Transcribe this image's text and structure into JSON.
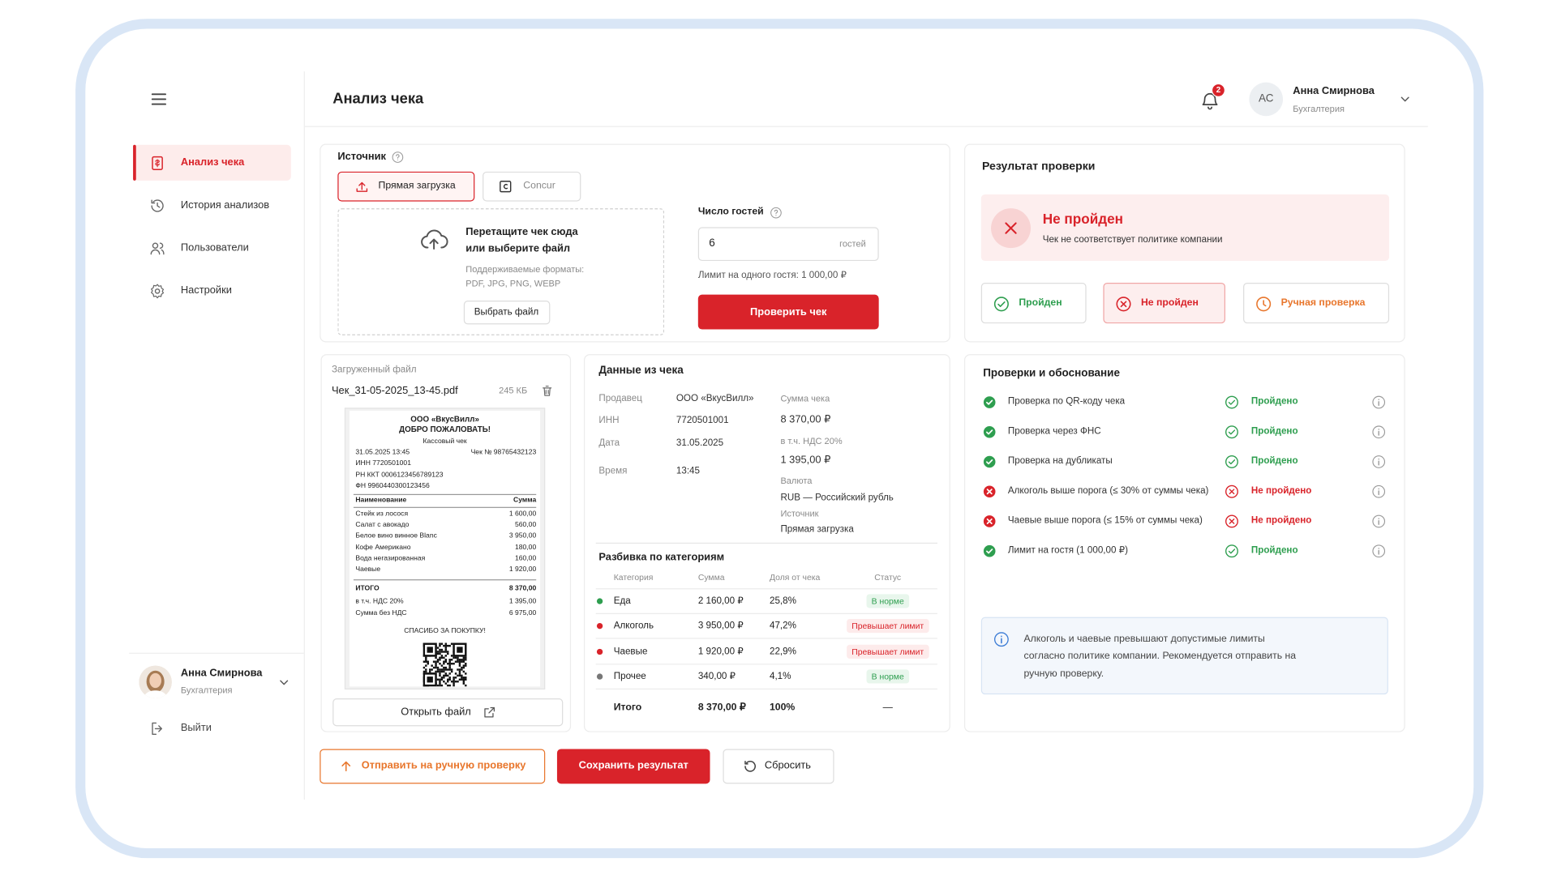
{
  "header": {
    "title": "Анализ чека",
    "notifications": "2",
    "user_initials": "АС",
    "user_name": "Анна Смирнова",
    "user_role": "Бухгалтерия"
  },
  "sidebar": {
    "nav": [
      "Анализ чека",
      "История анализов",
      "Пользователи",
      "Настройки"
    ],
    "user_name": "Анна Смирнова",
    "user_role": "Бухгалтерия",
    "logout": "Выйти"
  },
  "source": {
    "label": "Источник",
    "tabs": [
      "Прямая загрузка",
      "Concur"
    ],
    "drop_title": [
      "Перетащите чек сюда",
      "или выберите файл"
    ],
    "formats": [
      "Поддерживаемые форматы:",
      "PDF, JPG, PNG, WEBP"
    ],
    "choose_button": "Выбрать файл",
    "guests_label": "Число гостей",
    "guests_value": "6",
    "guests_unit": "гостей",
    "limit": "Лимит на одного гостя: 1 000,00 ₽",
    "check_button": "Проверить чек"
  },
  "file": {
    "label": "Загруженный файл",
    "name": "Чек_31-05-2025_13-45.pdf",
    "size": "245 КБ",
    "open_button": "Открыть файл",
    "receipt": {
      "shop": "ООО «ВкусВилл»",
      "greeting": "ДОБРО ПОЖАЛОВАТЬ!",
      "doc_type": "Кассовый чек",
      "datetime": "31.05.2025 13:45",
      "number": "Чек № 98765432123",
      "inn": "ИНН 7720501001",
      "rn": "РН ККТ 0006123456789123",
      "fn": "ФН 9960440300123456",
      "columns": [
        "Наименование",
        "Сумма"
      ],
      "items": [
        {
          "name": "Стейк из лосося",
          "sum": "1 600,00"
        },
        {
          "name": "Салат с авокадо",
          "sum": "560,00"
        },
        {
          "name": "Белое вино винное Blanc",
          "sum": "3 950,00"
        },
        {
          "name": "Кофе Американо",
          "sum": "180,00"
        },
        {
          "name": "Вода негазированная",
          "sum": "160,00"
        },
        {
          "name": "Чаевые",
          "sum": "1 920,00"
        }
      ],
      "totals": [
        {
          "name": "ИТОГО",
          "sum": "8 370,00"
        },
        {
          "name": "в т.ч. НДС 20%",
          "sum": "1 395,00"
        },
        {
          "name": "Сумма без НДС",
          "sum": "6 975,00"
        }
      ],
      "thanks": "СПАСИБО ЗА ПОКУПКУ!"
    }
  },
  "receipt_data": {
    "title": "Данные из чека",
    "fields": [
      {
        "label": "Продавец",
        "value": "ООО «ВкусВилл»"
      },
      {
        "label": "ИНН",
        "value": "7720501001"
      },
      {
        "label": "Дата",
        "value": "31.05.2025"
      },
      {
        "label": "Время",
        "value": "13:45"
      }
    ],
    "summary": [
      {
        "label": "Сумма чека",
        "value": "8 370,00 ₽"
      },
      {
        "label": "в т.ч. НДС 20%",
        "value": "1 395,00 ₽"
      },
      {
        "label": "Валюта",
        "value": "RUB — Российский рубль"
      },
      {
        "label": "Источник",
        "value": "Прямая загрузка"
      }
    ]
  },
  "breakdown": {
    "title": "Разбивка по категориям",
    "columns": [
      "Категория",
      "Сумма",
      "Доля от чека",
      "Статус"
    ],
    "rows": [
      {
        "category": "Еда",
        "sum": "2 160,00 ₽",
        "share": "25,8%",
        "status": "В норме",
        "color": "#2e9e4f"
      },
      {
        "category": "Алкоголь",
        "sum": "3 950,00 ₽",
        "share": "47,2%",
        "status": "Превышает лимит",
        "color": "#d9232a"
      },
      {
        "category": "Чаевые",
        "sum": "1 920,00 ₽",
        "share": "22,9%",
        "status": "Превышает лимит",
        "color": "#d9232a"
      },
      {
        "category": "Прочее",
        "sum": "340,00 ₽",
        "share": "4,1%",
        "status": "В норме",
        "color": "#2e9e4f"
      }
    ],
    "total": {
      "label": "Итого",
      "sum": "8 370,00 ₽",
      "share": "100%",
      "status": "—"
    }
  },
  "result": {
    "title": "Результат проверки",
    "status": "Не пройден",
    "description": "Чек не соответствует политике компании",
    "options": [
      {
        "label": "Пройден",
        "color": "#2e9e4f"
      },
      {
        "label": "Не пройден",
        "color": "#d9232a"
      },
      {
        "label": "Ручная проверка",
        "color": "#e8762c"
      }
    ]
  },
  "checks": {
    "title": "Проверки и обоснование",
    "items": [
      {
        "name": "Проверка по QR-коду чека",
        "result": "Пройдено",
        "color": "#2e9e4f"
      },
      {
        "name": "Проверка через ФНС",
        "result": "Пройдено",
        "color": "#2e9e4f"
      },
      {
        "name": "Проверка на дубликаты",
        "result": "Пройдено",
        "color": "#2e9e4f"
      },
      {
        "name": "Алкоголь выше порога (≤ 30% от суммы чека)",
        "result": "Не пройдено",
        "color": "#d9232a"
      },
      {
        "name": "Чаевые выше порога (≤ 15% от суммы чека)",
        "result": "Не пройдено",
        "color": "#d9232a"
      },
      {
        "name": "Лимит на гостя (1 000,00 ₽)",
        "result": "Пройдено",
        "color": "#2e9e4f"
      }
    ],
    "note": [
      "Алкоголь и чаевые превышают допустимые лимиты",
      "согласно политике компании. Рекомендуется отправить на",
      "ручную проверку."
    ]
  },
  "actions": [
    "Отправить на ручную проверку",
    "Сохранить результат",
    "Сбросить"
  ]
}
